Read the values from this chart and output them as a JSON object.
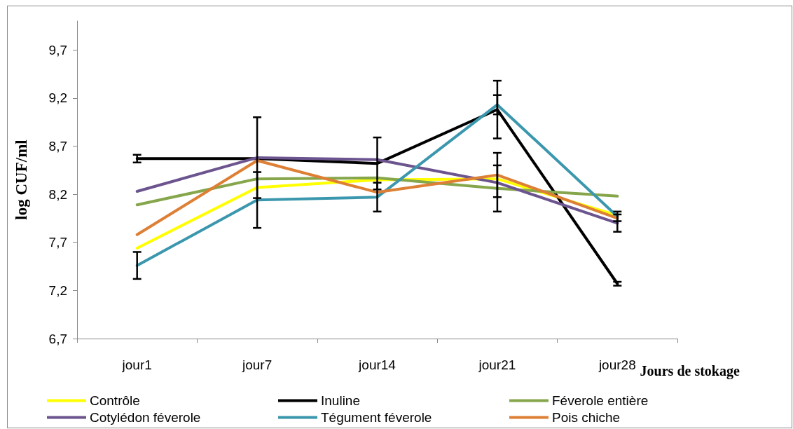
{
  "chart_data": {
    "type": "line",
    "xlabel": "Jours de stokage",
    "ylabel": "log CUF/ml",
    "categories": [
      "jour1",
      "jour7",
      "jour14",
      "jour21",
      "jour28"
    ],
    "ylim": [
      6.7,
      10.0
    ],
    "yticks": [
      {
        "value": 6.7,
        "label": "6,7"
      },
      {
        "value": 7.2,
        "label": "7,2"
      },
      {
        "value": 7.7,
        "label": "7,7"
      },
      {
        "value": 8.2,
        "label": "8,2"
      },
      {
        "value": 8.7,
        "label": "8,7"
      },
      {
        "value": 9.2,
        "label": "9,2"
      },
      {
        "value": 9.7,
        "label": "9,7"
      }
    ],
    "grid": false,
    "legend": "bottom",
    "marker": "none",
    "line_style": "solid",
    "series": [
      {
        "name": "Contrôle",
        "color": "#ffff00",
        "values": [
          7.64,
          8.27,
          8.35,
          8.36,
          7.98
        ],
        "errors": [
          null,
          null,
          null,
          null,
          null
        ]
      },
      {
        "name": "Inuline",
        "color": "#000000",
        "values": [
          8.57,
          8.57,
          8.52,
          9.08,
          7.27
        ],
        "errors": [
          0.04,
          null,
          0.27,
          0.3,
          0.02
        ]
      },
      {
        "name": "Féverole entière",
        "color": "#86a64b",
        "values": [
          8.09,
          8.36,
          8.37,
          8.26,
          8.18
        ],
        "errors": [
          null,
          null,
          null,
          0.24,
          null
        ]
      },
      {
        "name": "Cotylédon féverole",
        "color": "#6c558f",
        "values": [
          8.23,
          8.58,
          8.56,
          8.32,
          7.9
        ],
        "errors": [
          null,
          0.42,
          null,
          null,
          0.09
        ]
      },
      {
        "name": "Tégument féverole",
        "color": "#3b97ad",
        "values": [
          7.46,
          8.14,
          8.17,
          9.13,
          7.97
        ],
        "errors": [
          0.14,
          0.29,
          0.15,
          0.1,
          0.05
        ]
      },
      {
        "name": "Pois chiche",
        "color": "#dd7f34",
        "values": [
          7.78,
          8.55,
          8.22,
          8.4,
          7.95
        ],
        "errors": [
          null,
          null,
          null,
          0.23,
          null
        ]
      }
    ]
  }
}
